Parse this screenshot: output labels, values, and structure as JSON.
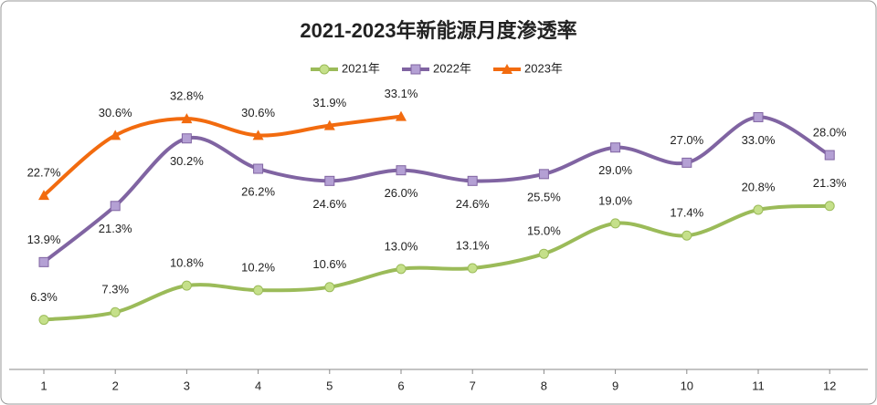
{
  "chart_data": {
    "type": "line",
    "title": "2021-2023年新能源月度渗透率",
    "categories": [
      "1",
      "2",
      "3",
      "4",
      "5",
      "6",
      "7",
      "8",
      "9",
      "10",
      "11",
      "12"
    ],
    "legend": "top",
    "series": [
      {
        "name": "2021年",
        "color": "#9bbb59",
        "marker": "circle",
        "values": [
          6.3,
          7.3,
          10.8,
          10.2,
          10.6,
          13.0,
          13.1,
          15.0,
          19.0,
          17.4,
          20.8,
          21.3
        ],
        "value_labels": [
          "6.3%",
          "7.3%",
          "10.8%",
          "10.2%",
          "10.6%",
          "13.0%",
          "13.1%",
          "15.0%",
          "19.0%",
          "17.4%",
          "20.8%",
          "21.3%"
        ]
      },
      {
        "name": "2022年",
        "color": "#8064a2",
        "marker": "square",
        "values": [
          13.9,
          21.3,
          30.2,
          26.2,
          24.6,
          26.0,
          24.6,
          25.5,
          29.0,
          27.0,
          33.0,
          28.0
        ],
        "value_labels": [
          "13.9%",
          "21.3%",
          "30.2%",
          "26.2%",
          "24.6%",
          "26.0%",
          "24.6%",
          "25.5%",
          "29.0%",
          "27.0%",
          "33.0%",
          "28.0%"
        ]
      },
      {
        "name": "2023年",
        "color": "#f26b0f",
        "marker": "triangle",
        "values": [
          22.7,
          30.6,
          32.8,
          30.6,
          31.9,
          33.1,
          null,
          null,
          null,
          null,
          null,
          null
        ],
        "value_labels": [
          "22.7%",
          "30.6%",
          "32.8%",
          "30.6%",
          "31.9%",
          "33.1%",
          null,
          null,
          null,
          null,
          null,
          null
        ]
      }
    ]
  }
}
